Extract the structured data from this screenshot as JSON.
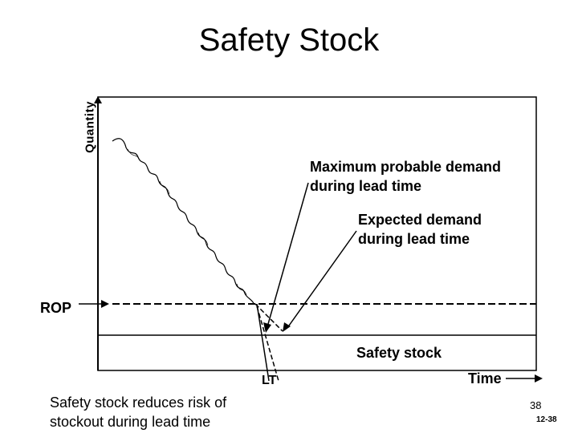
{
  "title": "Safety Stock",
  "y_axis_label": "Quantity",
  "annotations": {
    "max_demand_line1": "Maximum probable demand",
    "max_demand_line2": "during lead time",
    "expected_demand_line1": "Expected demand",
    "expected_demand_line2": "during lead time"
  },
  "labels": {
    "rop": "ROP",
    "safety_stock": "Safety stock",
    "lead_time": "LT",
    "time": "Time"
  },
  "note": {
    "line1": "Safety stock reduces risk of",
    "line2": "stockout during lead time"
  },
  "footer": {
    "page_number": "38",
    "slide_number": "12-38"
  }
}
